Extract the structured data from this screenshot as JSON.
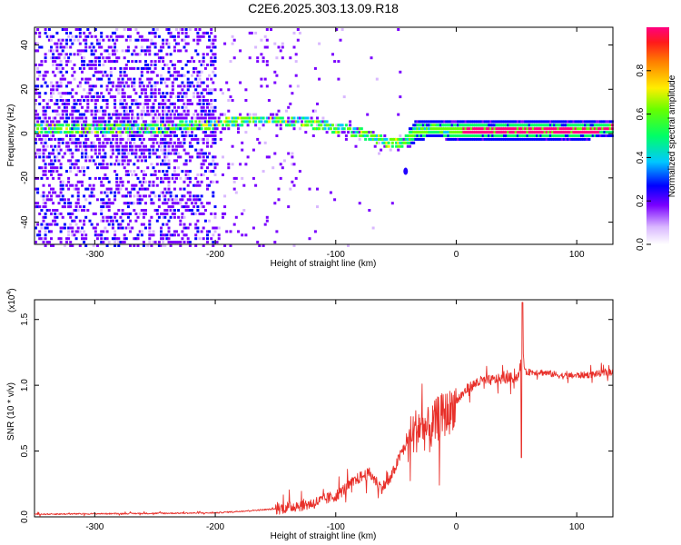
{
  "title": "C2E6.2025.303.13.09.R18",
  "chart_data": [
    {
      "type": "heatmap",
      "name": "spectrogram",
      "xlabel": "Height of straight line (km)",
      "ylabel": "Frequency (Hz)",
      "xlim": [
        -350,
        130
      ],
      "ylim": [
        -50,
        48
      ],
      "x_ticks": [
        -300,
        -200,
        -100,
        0,
        100
      ],
      "x_tick_labels": [
        "-300",
        "-200",
        "-100",
        "0",
        "100"
      ],
      "y_ticks": [
        40,
        20,
        0,
        -20,
        -40
      ],
      "y_tick_labels": [
        "40",
        "20",
        "0",
        "-20",
        "-40"
      ],
      "ridge": {
        "x": [
          -350,
          -300,
          -250,
          -200,
          -170,
          -150,
          -130,
          -110,
          -90,
          -75,
          -60,
          -50,
          -40,
          -35,
          -20,
          0,
          30,
          60,
          90,
          130
        ],
        "freq": [
          3,
          3,
          3,
          5,
          7,
          7,
          6,
          4,
          2,
          0,
          -3,
          -4,
          -2,
          2,
          3,
          2,
          2,
          2,
          2,
          3
        ]
      },
      "outlier": {
        "x": -42,
        "freq": -17
      }
    },
    {
      "type": "colorbar",
      "name": "colorbar",
      "label": "Normalized spectral amplitude",
      "range": [
        0,
        1
      ],
      "ticks": [
        0,
        0.2,
        0.4,
        0.6,
        0.8
      ],
      "tick_labels": [
        "0.0",
        "0.2",
        "0.4",
        "0.6",
        "0.8"
      ]
    },
    {
      "type": "line",
      "name": "snr",
      "xlabel": "Height of straight line (km)",
      "ylabel": "SNR (10 * v/v)",
      "multiplier_base": "(x10",
      "multiplier_exp": "4",
      "multiplier_close": ")",
      "xlim": [
        -350,
        130
      ],
      "ylim": [
        0,
        1.65
      ],
      "x_ticks": [
        -300,
        -200,
        -100,
        0,
        100
      ],
      "x_tick_labels": [
        "-300",
        "-200",
        "-100",
        "0",
        "100"
      ],
      "y_ticks": [
        0,
        0.5,
        1.0,
        1.5
      ],
      "y_tick_labels": [
        "0.0",
        "0.5",
        "1.0",
        "1.5"
      ],
      "line_color": "#e8302a",
      "envelope": {
        "x": [
          -350,
          -200,
          -150,
          -120,
          -100,
          -80,
          -72,
          -62,
          -55,
          -45,
          -38,
          -30,
          -22,
          -15,
          -5,
          0,
          10,
          20,
          30,
          40,
          50,
          53,
          55,
          57,
          60,
          70,
          90,
          110,
          130
        ],
        "y": [
          0.02,
          0.03,
          0.06,
          0.1,
          0.16,
          0.3,
          0.33,
          0.22,
          0.28,
          0.5,
          0.6,
          0.7,
          0.65,
          0.75,
          0.8,
          0.88,
          0.98,
          1.03,
          1.04,
          1.05,
          1.06,
          1.1,
          1.3,
          1.1,
          1.1,
          1.1,
          1.07,
          1.08,
          1.1
        ]
      },
      "peak": {
        "x": 55,
        "y": 1.63
      },
      "trough": {
        "x": 54,
        "y": 0.45
      }
    }
  ]
}
